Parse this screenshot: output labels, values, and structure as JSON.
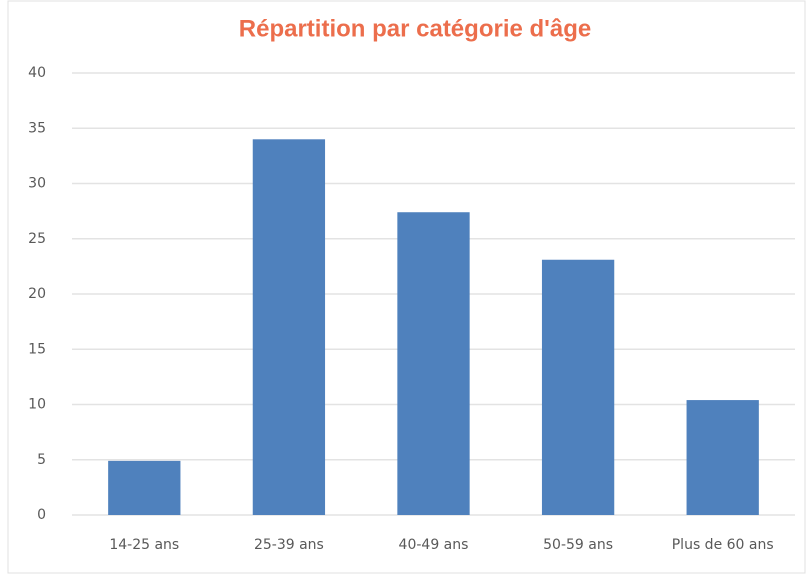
{
  "chart_data": {
    "type": "bar",
    "title": "Répartition par catégorie d'âge",
    "categories": [
      "14-25 ans",
      "25-39 ans",
      "40-49 ans",
      "50-59 ans",
      "Plus de 60 ans"
    ],
    "values": [
      4.9,
      34.0,
      27.4,
      23.1,
      10.4
    ],
    "color": "#4f81bd",
    "title_color": "#ec6e4c",
    "ylim": [
      0,
      40
    ],
    "yticks": [
      0,
      5,
      10,
      15,
      20,
      25,
      30,
      35,
      40
    ],
    "grid": true
  }
}
